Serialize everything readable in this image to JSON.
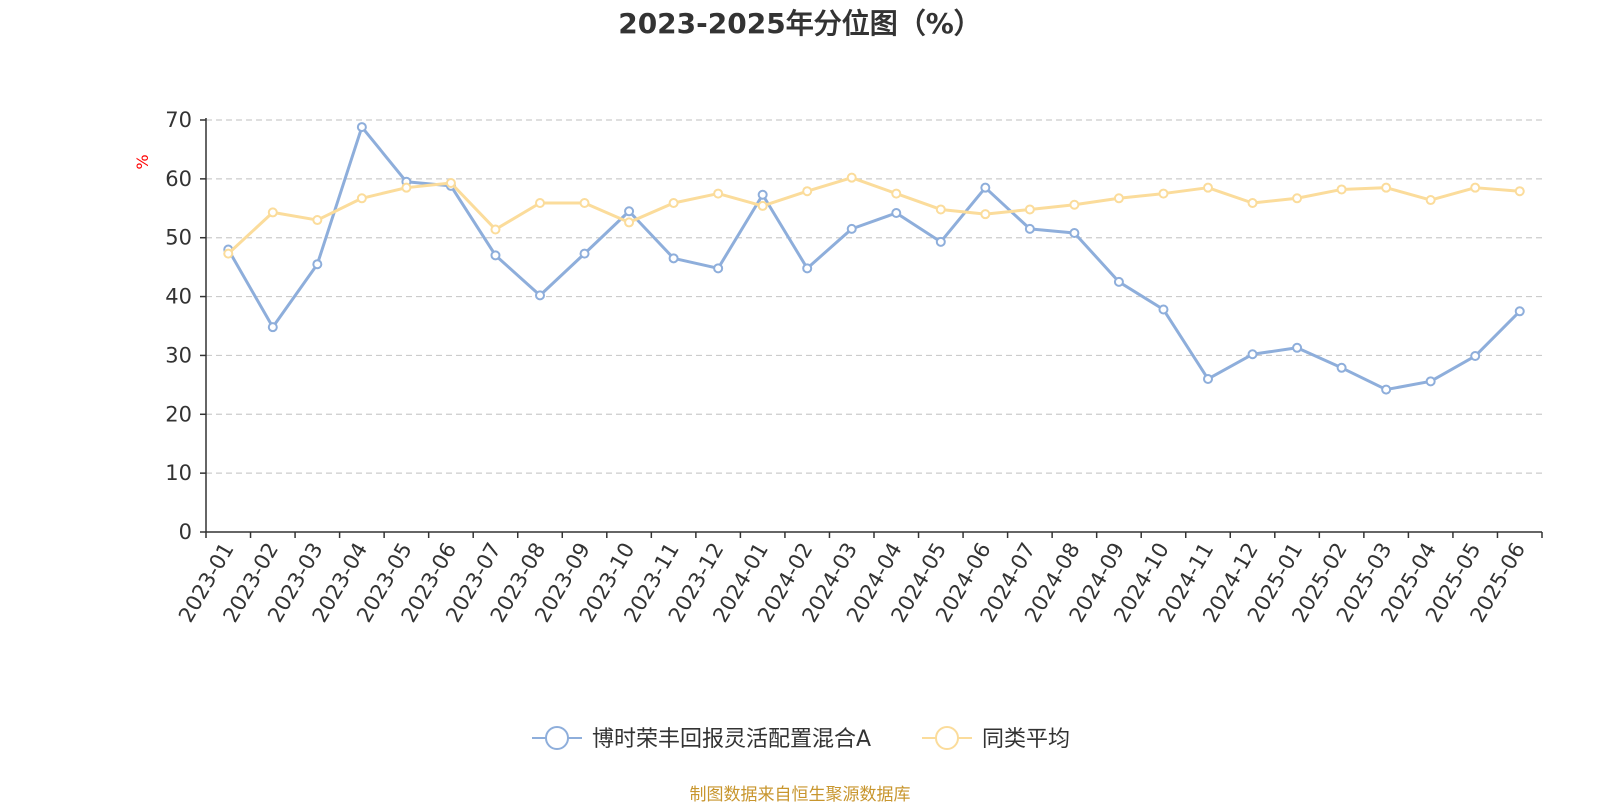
{
  "chart_data": {
    "type": "line",
    "title": "2023-2025年分位图（%）",
    "ylabel": "%",
    "ylim": [
      0,
      70
    ],
    "yticks": [
      0,
      10,
      20,
      30,
      40,
      50,
      60,
      70
    ],
    "grid": "horizontal dashed",
    "legend_position": "bottom-center",
    "categories": [
      "2023-01",
      "2023-02",
      "2023-03",
      "2023-04",
      "2023-05",
      "2023-06",
      "2023-07",
      "2023-08",
      "2023-09",
      "2023-10",
      "2023-11",
      "2023-12",
      "2024-01",
      "2024-02",
      "2024-03",
      "2024-04",
      "2024-05",
      "2024-06",
      "2024-07",
      "2024-08",
      "2024-09",
      "2024-10",
      "2024-11",
      "2024-12",
      "2025-01",
      "2025-02",
      "2025-03",
      "2025-04",
      "2025-05",
      "2025-06"
    ],
    "series": [
      {
        "name": "博时荣丰回报灵活配置混合A",
        "color": "#8eaedb",
        "values": [
          48.0,
          34.8,
          45.5,
          68.8,
          59.5,
          58.8,
          47.0,
          40.2,
          47.3,
          54.5,
          46.5,
          44.8,
          57.3,
          44.8,
          51.5,
          54.2,
          49.3,
          58.5,
          51.5,
          50.8,
          42.5,
          37.8,
          26.0,
          30.2,
          31.3,
          27.9,
          24.2,
          25.6,
          29.9,
          37.5
        ]
      },
      {
        "name": "同类平均",
        "color": "#fbdc9b",
        "values": [
          47.3,
          54.3,
          53.0,
          56.7,
          58.5,
          59.3,
          51.4,
          55.9,
          55.9,
          52.6,
          55.9,
          57.5,
          55.4,
          57.9,
          60.2,
          57.5,
          54.8,
          54.0,
          54.8,
          55.6,
          56.7,
          57.5,
          58.5,
          55.9,
          56.7,
          58.2,
          58.5,
          56.4,
          58.5,
          57.9
        ]
      }
    ]
  },
  "footer": {
    "source": "制图数据来自恒生聚源数据库"
  }
}
